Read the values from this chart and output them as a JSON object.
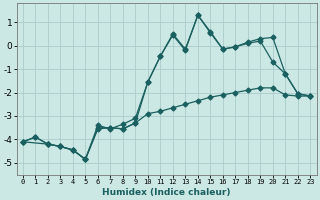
{
  "background_color": "#cce8e4",
  "grid_color": "#aaccca",
  "line_color": "#1a6060",
  "xlabel": "Humidex (Indice chaleur)",
  "xlim": [
    -0.5,
    23.5
  ],
  "ylim": [
    -5.5,
    1.8
  ],
  "xticks": [
    0,
    1,
    2,
    3,
    4,
    5,
    6,
    7,
    8,
    9,
    10,
    11,
    12,
    13,
    14,
    15,
    16,
    17,
    18,
    19,
    20,
    21,
    22,
    23
  ],
  "yticks": [
    -5,
    -4,
    -3,
    -2,
    -1,
    0,
    1
  ],
  "series1_x": [
    0,
    1,
    2,
    3,
    4,
    5,
    6,
    7,
    8,
    9,
    10,
    11,
    12,
    13,
    14,
    15,
    16,
    17,
    18,
    19,
    20,
    21,
    22,
    23
  ],
  "series1_y": [
    -4.1,
    -3.9,
    -4.2,
    -4.3,
    -4.45,
    -4.85,
    -3.55,
    -3.5,
    -3.55,
    -3.3,
    -2.9,
    -2.8,
    -2.65,
    -2.5,
    -2.35,
    -2.2,
    -2.1,
    -2.0,
    -1.9,
    -1.8,
    -1.8,
    -2.1,
    -2.15,
    -2.15
  ],
  "series2_x": [
    0,
    2,
    3,
    4,
    5,
    6,
    7,
    8,
    9,
    10,
    11,
    12,
    13,
    14,
    15,
    16,
    17,
    18,
    19,
    20,
    21,
    22,
    23
  ],
  "series2_y": [
    -4.1,
    -4.2,
    -4.3,
    -4.45,
    -4.85,
    -3.4,
    -3.55,
    -3.35,
    -3.1,
    -1.55,
    -0.45,
    0.5,
    -0.15,
    1.3,
    0.55,
    -0.15,
    -0.05,
    0.15,
    0.3,
    0.35,
    -1.2,
    -2.05,
    -2.15
  ],
  "series3_x": [
    0,
    1,
    2,
    3,
    4,
    5,
    6,
    7,
    8,
    9,
    10,
    11,
    12,
    13,
    14,
    15,
    16,
    17,
    18,
    19,
    20,
    21,
    22,
    23
  ],
  "series3_y": [
    -4.1,
    -3.9,
    -4.2,
    -4.3,
    -4.45,
    -4.85,
    -3.5,
    -3.5,
    -3.55,
    -3.3,
    -1.55,
    -0.45,
    0.45,
    -0.2,
    1.3,
    0.6,
    -0.15,
    -0.05,
    0.1,
    0.2,
    -0.7,
    -1.2,
    -2.05,
    -2.15
  ]
}
